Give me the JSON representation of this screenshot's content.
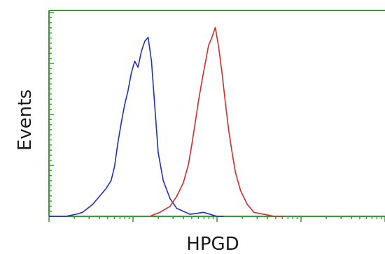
{
  "chart_data": {
    "type": "line",
    "title": "",
    "xlabel": "HPGD",
    "ylabel": "Events",
    "xlim": [
      0,
      1
    ],
    "ylim": [
      0,
      1
    ],
    "grid": false,
    "legend": "none",
    "axis_color": "#2ca02c",
    "series": [
      {
        "color": "#1f2fc4",
        "x": [
          0.0,
          0.05,
          0.08,
          0.1,
          0.13,
          0.15,
          0.17,
          0.185,
          0.195,
          0.205,
          0.215,
          0.225,
          0.235,
          0.245,
          0.255,
          0.265,
          0.275,
          0.285,
          0.295,
          0.305,
          0.315,
          0.325,
          0.34,
          0.36,
          0.38,
          0.42,
          0.46,
          0.5,
          0.52
        ],
        "y": [
          0.0,
          0.0,
          0.01,
          0.02,
          0.06,
          0.1,
          0.14,
          0.18,
          0.25,
          0.37,
          0.47,
          0.56,
          0.63,
          0.72,
          0.78,
          0.75,
          0.83,
          0.88,
          0.9,
          0.78,
          0.55,
          0.32,
          0.18,
          0.09,
          0.04,
          0.01,
          0.02,
          0.0,
          0.0
        ]
      },
      {
        "color": "#d42a2a",
        "x": [
          0.3,
          0.33,
          0.36,
          0.38,
          0.4,
          0.415,
          0.425,
          0.435,
          0.445,
          0.455,
          0.465,
          0.475,
          0.485,
          0.495,
          0.505,
          0.515,
          0.525,
          0.535,
          0.545,
          0.555,
          0.57,
          0.59,
          0.61,
          0.64,
          0.67,
          0.7
        ],
        "y": [
          0.0,
          0.02,
          0.05,
          0.1,
          0.17,
          0.26,
          0.36,
          0.47,
          0.58,
          0.68,
          0.77,
          0.86,
          0.9,
          0.95,
          0.85,
          0.72,
          0.57,
          0.43,
          0.32,
          0.22,
          0.13,
          0.06,
          0.02,
          0.01,
          0.0,
          0.0
        ]
      }
    ]
  }
}
